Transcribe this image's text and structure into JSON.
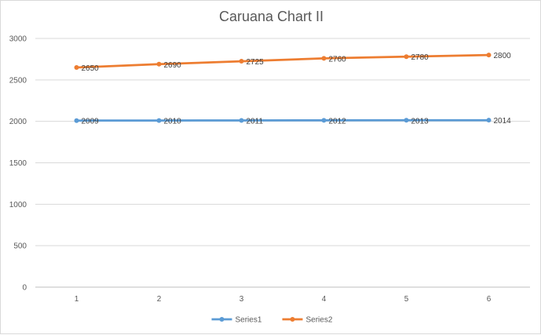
{
  "chart_data": {
    "type": "line",
    "title": "Caruana Chart II",
    "x": [
      1,
      2,
      3,
      4,
      5,
      6
    ],
    "ylim": [
      0,
      3000
    ],
    "yticks": [
      0,
      500,
      1000,
      1500,
      2000,
      2500,
      3000
    ],
    "grid": true,
    "legend_position": "bottom",
    "series": [
      {
        "name": "Series1",
        "color": "#5b9bd5",
        "values": [
          2009,
          2010,
          2011,
          2012,
          2013,
          2014
        ],
        "labels": [
          "2009",
          "2010",
          "2011",
          "2012",
          "2013",
          "2014"
        ]
      },
      {
        "name": "Series2",
        "color": "#ed7d31",
        "values": [
          2650,
          2690,
          2725,
          2760,
          2780,
          2800
        ],
        "labels": [
          "2650",
          "2690",
          "2725",
          "2760",
          "2780",
          "2800"
        ]
      }
    ]
  }
}
